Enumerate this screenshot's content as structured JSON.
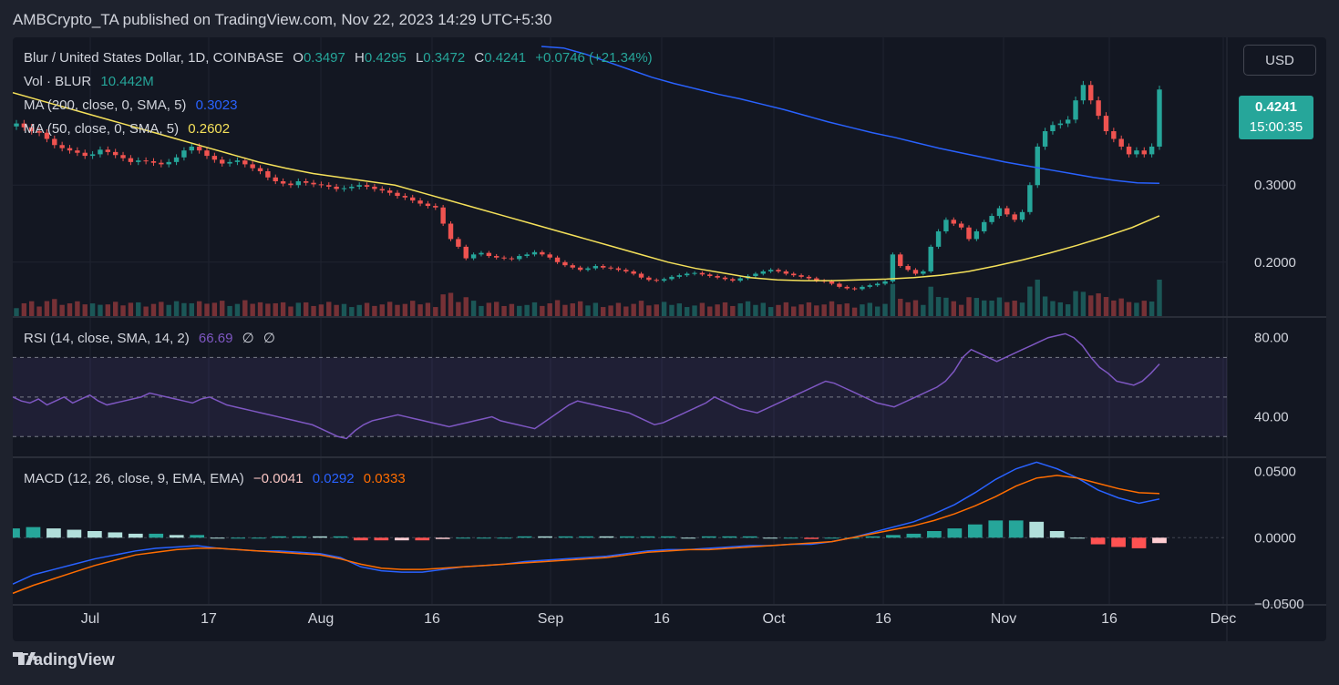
{
  "header": {
    "publisher": "AMBCrypto_TA published on TradingView.com, Nov 22, 2023 14:29 UTC+5:30"
  },
  "legend": {
    "symbol": "Blur / United States Dollar, 1D, COINBASE",
    "o_label": "O",
    "o_value": "0.3497",
    "h_label": "H",
    "h_value": "0.4295",
    "l_label": "L",
    "l_value": "0.3472",
    "c_label": "C",
    "c_value": "0.4241",
    "change": "+0.0746 (+21.34%)",
    "vol_label": "Vol · BLUR",
    "vol_value": "10.442M",
    "ma200_label": "MA (200, close, 0, SMA, 5)",
    "ma200_value": "0.3023",
    "ma50_label": "MA (50, close, 0, SMA, 5)",
    "ma50_value": "0.2602",
    "rsi_label": "RSI (14, close, SMA, 14, 2)",
    "rsi_value": "66.69",
    "rsi_extra1": "∅",
    "rsi_extra2": "∅",
    "macd_label": "MACD (12, 26, close, 9, EMA, EMA)",
    "macd_hist": "−0.0041",
    "macd_line": "0.0292",
    "macd_signal": "0.0333"
  },
  "currency_button": "USD",
  "price_tag": {
    "price": "0.4241",
    "countdown": "15:00:35"
  },
  "footer": {
    "logo_icon": "tradingview-logo-icon",
    "brand": "TradingView"
  },
  "colors": {
    "up": "#26a69a",
    "down": "#ef5350",
    "ma200": "#2962ff",
    "ma50": "#f5e15a",
    "rsi": "#7e57c2",
    "macd": "#2962ff",
    "signal": "#ff6d00"
  },
  "chart_data": [
    {
      "type": "candlestick",
      "title": "Blur / United States Dollar, 1D, COINBASE",
      "x_ticks": [
        "Jul",
        "17",
        "Aug",
        "16",
        "Sep",
        "16",
        "Oct",
        "16",
        "Nov",
        "16",
        "Dec"
      ],
      "y_ticks": [
        "0.3000",
        "0.2000"
      ],
      "ylim": [
        0.13,
        0.48
      ],
      "close_series": [
        0.38,
        0.375,
        0.37,
        0.368,
        0.36,
        0.352,
        0.348,
        0.345,
        0.342,
        0.338,
        0.34,
        0.346,
        0.343,
        0.339,
        0.335,
        0.33,
        0.332,
        0.331,
        0.329,
        0.327,
        0.33,
        0.336,
        0.345,
        0.35,
        0.345,
        0.338,
        0.333,
        0.328,
        0.33,
        0.332,
        0.327,
        0.322,
        0.318,
        0.31,
        0.305,
        0.302,
        0.3,
        0.305,
        0.303,
        0.301,
        0.3,
        0.298,
        0.295,
        0.296,
        0.298,
        0.3,
        0.298,
        0.295,
        0.293,
        0.29,
        0.286,
        0.284,
        0.28,
        0.276,
        0.273,
        0.271,
        0.25,
        0.23,
        0.22,
        0.205,
        0.21,
        0.212,
        0.208,
        0.206,
        0.205,
        0.204,
        0.208,
        0.21,
        0.213,
        0.21,
        0.206,
        0.2,
        0.196,
        0.193,
        0.19,
        0.192,
        0.195,
        0.193,
        0.192,
        0.19,
        0.188,
        0.185,
        0.18,
        0.177,
        0.176,
        0.178,
        0.181,
        0.183,
        0.185,
        0.186,
        0.184,
        0.182,
        0.18,
        0.178,
        0.176,
        0.179,
        0.182,
        0.185,
        0.188,
        0.19,
        0.188,
        0.185,
        0.183,
        0.181,
        0.179,
        0.176,
        0.175,
        0.172,
        0.168,
        0.166,
        0.165,
        0.168,
        0.17,
        0.172,
        0.175,
        0.21,
        0.195,
        0.19,
        0.185,
        0.188,
        0.22,
        0.24,
        0.255,
        0.25,
        0.245,
        0.23,
        0.24,
        0.252,
        0.26,
        0.27,
        0.262,
        0.255,
        0.265,
        0.3,
        0.35,
        0.37,
        0.378,
        0.38,
        0.385,
        0.41,
        0.43,
        0.41,
        0.39,
        0.37,
        0.36,
        0.35,
        0.34,
        0.345,
        0.34,
        0.35,
        0.4241
      ],
      "ma200": [
        0.48,
        0.478,
        0.47,
        0.46,
        0.45,
        0.44,
        0.432,
        0.425,
        0.418,
        0.412,
        0.405,
        0.398,
        0.39,
        0.382,
        0.375,
        0.368,
        0.362,
        0.355,
        0.348,
        0.342,
        0.336,
        0.33,
        0.325,
        0.32,
        0.315,
        0.31,
        0.306,
        0.303,
        0.3023
      ],
      "ma50": [
        0.42,
        0.41,
        0.4,
        0.39,
        0.38,
        0.37,
        0.36,
        0.35,
        0.34,
        0.33,
        0.322,
        0.315,
        0.31,
        0.305,
        0.3,
        0.29,
        0.28,
        0.27,
        0.26,
        0.25,
        0.24,
        0.23,
        0.22,
        0.21,
        0.2,
        0.192,
        0.186,
        0.18,
        0.177,
        0.176,
        0.176,
        0.177,
        0.178,
        0.18,
        0.183,
        0.188,
        0.195,
        0.203,
        0.212,
        0.222,
        0.233,
        0.245,
        0.2602
      ]
    },
    {
      "type": "line",
      "title": "RSI (14, close, SMA, 14, 2)",
      "y_ticks": [
        "80.00",
        "40.00"
      ],
      "ylim": [
        20,
        90
      ],
      "values": [
        50,
        48,
        47,
        49,
        46,
        48,
        50,
        47,
        49,
        51,
        48,
        46,
        47,
        48,
        49,
        50,
        52,
        51,
        50,
        49,
        48,
        47,
        49,
        50,
        48,
        46,
        45,
        44,
        43,
        42,
        41,
        40,
        39,
        38,
        37,
        36,
        34,
        32,
        30,
        29,
        33,
        36,
        38,
        39,
        40,
        41,
        40,
        39,
        38,
        37,
        36,
        35,
        36,
        37,
        38,
        39,
        40,
        38,
        37,
        36,
        35,
        34,
        37,
        40,
        43,
        46,
        48,
        47,
        46,
        45,
        44,
        43,
        42,
        40,
        38,
        36,
        37,
        39,
        41,
        43,
        45,
        47,
        50,
        48,
        46,
        44,
        43,
        42,
        44,
        46,
        48,
        50,
        52,
        54,
        56,
        58,
        57,
        55,
        53,
        51,
        49,
        47,
        46,
        45,
        47,
        49,
        51,
        53,
        55,
        58,
        63,
        70,
        74,
        72,
        70,
        68,
        70,
        72,
        74,
        76,
        78,
        80,
        81,
        82,
        80,
        76,
        70,
        65,
        62,
        58,
        57,
        56,
        58,
        62,
        66.69
      ]
    },
    {
      "type": "line",
      "title": "MACD (12, 26, close, 9, EMA, EMA)",
      "y_ticks": [
        "0.0500",
        "0.0000",
        "−0.0500"
      ],
      "ylim": [
        -0.05,
        0.06
      ],
      "series": [
        {
          "name": "MACD",
          "values": [
            -0.035,
            -0.028,
            -0.024,
            -0.02,
            -0.016,
            -0.013,
            -0.01,
            -0.008,
            -0.007,
            -0.006,
            -0.008,
            -0.009,
            -0.01,
            -0.01,
            -0.011,
            -0.012,
            -0.015,
            -0.022,
            -0.025,
            -0.026,
            -0.026,
            -0.024,
            -0.022,
            -0.021,
            -0.02,
            -0.018,
            -0.017,
            -0.016,
            -0.015,
            -0.014,
            -0.012,
            -0.01,
            -0.009,
            -0.009,
            -0.008,
            -0.007,
            -0.006,
            -0.006,
            -0.005,
            -0.005,
            -0.003,
            0.0,
            0.004,
            0.008,
            0.012,
            0.018,
            0.025,
            0.034,
            0.044,
            0.052,
            0.057,
            0.052,
            0.045,
            0.036,
            0.03,
            0.026,
            0.0292
          ]
        },
        {
          "name": "Signal",
          "values": [
            -0.042,
            -0.036,
            -0.031,
            -0.026,
            -0.021,
            -0.017,
            -0.013,
            -0.011,
            -0.009,
            -0.008,
            -0.008,
            -0.009,
            -0.01,
            -0.011,
            -0.012,
            -0.013,
            -0.016,
            -0.02,
            -0.023,
            -0.024,
            -0.024,
            -0.023,
            -0.022,
            -0.021,
            -0.02,
            -0.019,
            -0.018,
            -0.017,
            -0.016,
            -0.015,
            -0.013,
            -0.011,
            -0.01,
            -0.009,
            -0.009,
            -0.008,
            -0.007,
            -0.006,
            -0.005,
            -0.004,
            -0.003,
            0.0,
            0.003,
            0.006,
            0.009,
            0.013,
            0.018,
            0.024,
            0.031,
            0.039,
            0.045,
            0.047,
            0.045,
            0.041,
            0.037,
            0.034,
            0.0333
          ]
        }
      ]
    }
  ]
}
